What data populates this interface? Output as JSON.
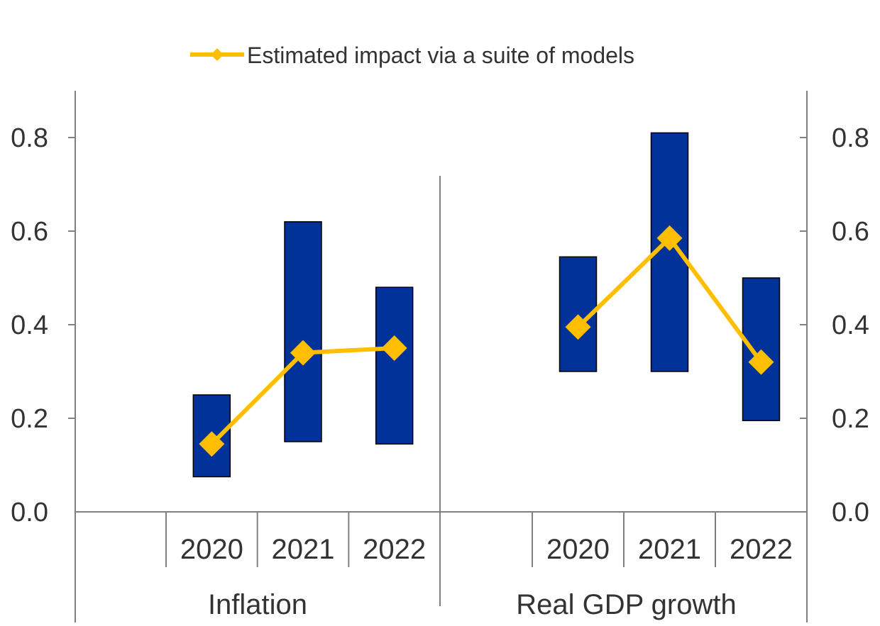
{
  "chart_data": {
    "type": "bar",
    "legend": {
      "position": "top",
      "entries": [
        {
          "label": "Estimated impact via a suite of models",
          "color": "#FFBF00",
          "marker": "diamond"
        }
      ]
    },
    "ylim": [
      0,
      0.9
    ],
    "yticks": [
      0.0,
      0.2,
      0.4,
      0.6,
      0.8
    ],
    "ytick_labels": [
      "0.0",
      "0.2",
      "0.4",
      "0.6",
      "0.8"
    ],
    "range_bar_color": "#003299",
    "line_color": "#FFBF00",
    "groups": [
      {
        "label": "Inflation",
        "categories": [
          "2020",
          "2021",
          "2022"
        ],
        "range_low": [
          0.075,
          0.15,
          0.145
        ],
        "range_high": [
          0.25,
          0.62,
          0.48
        ],
        "estimated_impact": [
          0.145,
          0.34,
          0.35
        ]
      },
      {
        "label": "Real GDP growth",
        "categories": [
          "2020",
          "2021",
          "2022"
        ],
        "range_low": [
          0.3,
          0.3,
          0.195
        ],
        "range_high": [
          0.545,
          0.81,
          0.5
        ],
        "estimated_impact": [
          0.395,
          0.585,
          0.32
        ]
      }
    ]
  }
}
